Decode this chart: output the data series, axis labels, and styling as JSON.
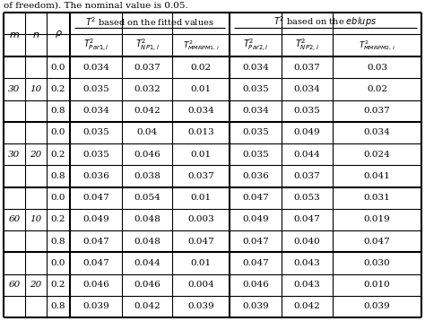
{
  "title_text": "of freedom). The nominal value is 0.05.",
  "col_labels_m": [
    30,
    30,
    60,
    60
  ],
  "col_labels_n": [
    10,
    20,
    10,
    20
  ],
  "rho_values": [
    "0.0",
    "0.2",
    "0.8"
  ],
  "data": [
    [
      [
        "0.034",
        "0.037",
        "0.02",
        "0.034",
        "0.037",
        "0.03"
      ],
      [
        "0.035",
        "0.032",
        "0.01",
        "0.035",
        "0.034",
        "0.02"
      ],
      [
        "0.034",
        "0.042",
        "0.034",
        "0.034",
        "0.035",
        "0.037"
      ]
    ],
    [
      [
        "0.035",
        "0.04",
        "0.013",
        "0.035",
        "0.049",
        "0.034"
      ],
      [
        "0.035",
        "0.046",
        "0.01",
        "0.035",
        "0.044",
        "0.024"
      ],
      [
        "0.036",
        "0.038",
        "0.037",
        "0.036",
        "0.037",
        "0.041"
      ]
    ],
    [
      [
        "0.047",
        "0.054",
        "0.01",
        "0.047",
        "0.053",
        "0.031"
      ],
      [
        "0.049",
        "0.048",
        "0.003",
        "0.049",
        "0.047",
        "0.019"
      ],
      [
        "0.047",
        "0.048",
        "0.047",
        "0.047",
        "0.040",
        "0.047"
      ]
    ],
    [
      [
        "0.047",
        "0.044",
        "0.01",
        "0.047",
        "0.043",
        "0.030"
      ],
      [
        "0.046",
        "0.046",
        "0.004",
        "0.046",
        "0.043",
        "0.010"
      ],
      [
        "0.039",
        "0.042",
        "0.039",
        "0.039",
        "0.042",
        "0.039"
      ]
    ]
  ],
  "bg_color": "#ffffff",
  "line_color": "#000000",
  "text_color": "#000000",
  "font_size": 7.0,
  "title_font_size": 7.5,
  "header_font_size": 7.0,
  "data_font_size": 7.5
}
